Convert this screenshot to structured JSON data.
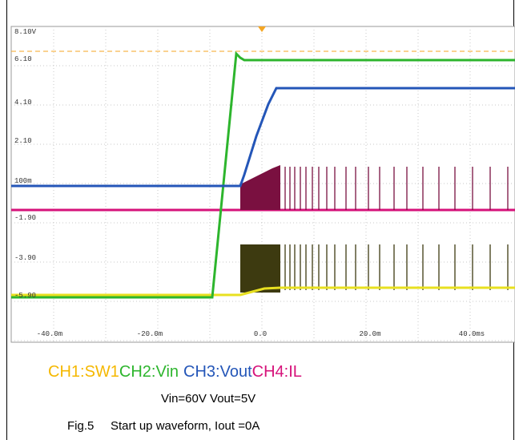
{
  "scope": {
    "y_labels": [
      "8.10V",
      "6.10",
      "4.10",
      "2.10",
      "100m",
      "-1.90",
      "-3.90",
      "-5.90"
    ],
    "x_labels": [
      "-40.0m",
      "-20.0m",
      "0.0",
      "20.0m",
      "40.0ms"
    ]
  },
  "legend": [
    "CH1:SW1",
    "CH2:Vin",
    "CH3:Vout",
    "CH4:IL"
  ],
  "caption": {
    "conditions": "Vin=60V Vout=5V",
    "label": "Fig.5",
    "text": "Start up waveform, Iout =0A"
  }
}
